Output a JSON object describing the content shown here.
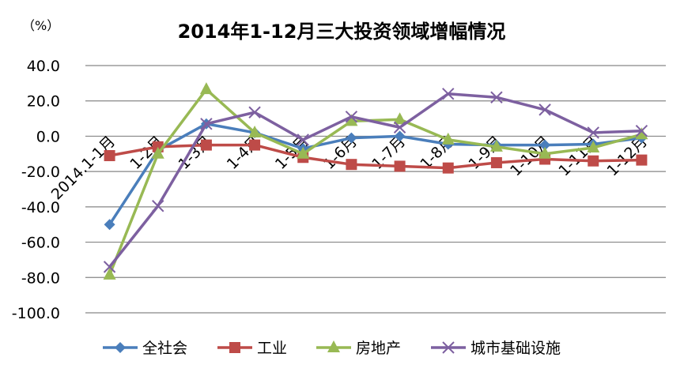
{
  "chart_data": {
    "type": "line",
    "title": "2014年1-12月三大投资领域增幅情况",
    "ylabel": "（%）",
    "xlabel": "",
    "ylim": [
      -100,
      40
    ],
    "yticks": [
      "40.0",
      "20.0",
      "0.0",
      "-20.0",
      "-40.0",
      "-60.0",
      "-80.0",
      "-100.0"
    ],
    "ytick_values": [
      40,
      20,
      0,
      -20,
      -40,
      -60,
      -80,
      -100
    ],
    "grid": true,
    "legend_position": "bottom",
    "categories": [
      "2014.1-1月",
      "1-2月",
      "1-3月",
      "1-4月",
      "1-5月",
      "1-6月",
      "1-7月",
      "1-8月",
      "1-9月",
      "1-10月",
      "1-11月",
      "1-12月"
    ],
    "series": [
      {
        "name": "全社会",
        "color": "#4a7ebb",
        "marker": "diamond",
        "values": [
          -50,
          -8,
          7,
          2,
          -7,
          -1,
          0,
          -4.5,
          -5,
          -5,
          -4.5,
          -1
        ]
      },
      {
        "name": "工业",
        "color": "#be4b48",
        "marker": "square",
        "values": [
          -11,
          -6,
          -5,
          -5,
          -12,
          -16,
          -17,
          -18,
          -15,
          -13,
          -14,
          -13.5
        ]
      },
      {
        "name": "房地产",
        "color": "#98b954",
        "marker": "triangle",
        "values": [
          -78.5,
          -10,
          26.5,
          2,
          -10,
          8.5,
          9.5,
          -2,
          -6,
          -10,
          -6.5,
          1
        ]
      },
      {
        "name": "城市基础设施",
        "color": "#7d60a0",
        "marker": "x",
        "values": [
          -74,
          -39.5,
          7,
          13.5,
          -2,
          11,
          5,
          24,
          22,
          15,
          2,
          3
        ]
      }
    ]
  }
}
